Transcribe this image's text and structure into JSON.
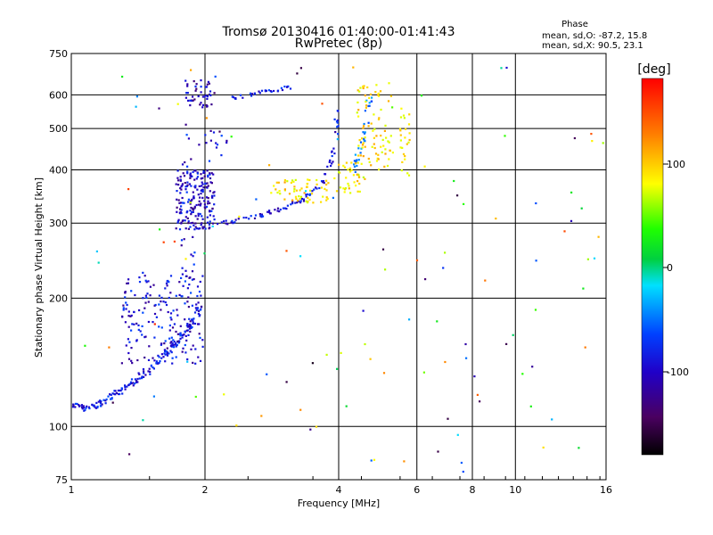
{
  "title": "Tromsø 20130416 01:40:00-01:41:43",
  "subtitle": "RwPretec (8p)",
  "phase_info": {
    "heading": "Phase",
    "line_o": "mean, sd,O: -87.2, 15.8",
    "line_x": "mean, sd,X:  90.5, 23.1"
  },
  "colorbar": {
    "label": "[deg]",
    "tick_labels": [
      "100",
      "0",
      "-100"
    ],
    "min": -180,
    "max": 180
  },
  "chart_data": {
    "type": "scatter",
    "xlabel": "Frequency [MHz]",
    "ylabel": "Stationary phase Virtual Height [km]",
    "xscale": "log",
    "yscale": "log",
    "xlim": [
      1,
      16
    ],
    "ylim": [
      75,
      750
    ],
    "x_ticks": [
      1,
      2,
      4,
      6,
      8,
      10,
      16
    ],
    "x_tick_labels": [
      "1",
      "2",
      "4",
      "6",
      "8",
      "10",
      "16"
    ],
    "y_ticks": [
      75,
      100,
      200,
      300,
      400,
      500,
      600,
      750
    ],
    "y_tick_labels": [
      "75",
      "100",
      "200",
      "300",
      "400",
      "500",
      "600",
      "750"
    ],
    "grid": true,
    "color_encoding": "phase [deg]",
    "clusters": [
      {
        "kind": "trace",
        "phase": -95,
        "jit": 0.035,
        "n": 20,
        "pts": [
          [
            1.0,
            112
          ],
          [
            1.1,
            110
          ],
          [
            1.2,
            116
          ],
          [
            1.3,
            122
          ],
          [
            1.42,
            130
          ],
          [
            1.55,
            140
          ],
          [
            1.65,
            150
          ],
          [
            1.75,
            160
          ],
          [
            1.85,
            172
          ],
          [
            1.95,
            190
          ]
        ]
      },
      {
        "kind": "blob",
        "phase": -100,
        "x": [
          1.3,
          2.0
        ],
        "y": [
          140,
          230
        ],
        "n": 180
      },
      {
        "kind": "blob",
        "phase": -100,
        "x": [
          1.75,
          1.9
        ],
        "y": [
          200,
          280
        ],
        "n": 20
      },
      {
        "kind": "blob",
        "phase": -105,
        "x": [
          1.72,
          2.1
        ],
        "y": [
          290,
          400
        ],
        "n": 200
      },
      {
        "kind": "blob",
        "phase": -100,
        "x": [
          1.78,
          2.3
        ],
        "y": [
          400,
          500
        ],
        "n": 20
      },
      {
        "kind": "blob",
        "phase": -110,
        "x": [
          1.8,
          2.1
        ],
        "y": [
          560,
          650
        ],
        "n": 45
      },
      {
        "kind": "trace",
        "phase": -100,
        "jit": 0.02,
        "n": 8,
        "pts": [
          [
            2.15,
            300
          ],
          [
            2.3,
            302
          ],
          [
            2.5,
            308
          ],
          [
            2.7,
            314
          ],
          [
            2.9,
            322
          ],
          [
            3.1,
            330
          ],
          [
            3.3,
            340
          ],
          [
            3.5,
            355
          ],
          [
            3.7,
            375
          ],
          [
            3.85,
            420
          ],
          [
            3.95,
            490
          ],
          [
            3.96,
            560
          ]
        ]
      },
      {
        "kind": "trace",
        "phase": -95,
        "jit": 0.02,
        "n": 8,
        "pts": [
          [
            2.3,
            590
          ],
          [
            2.5,
            600
          ],
          [
            2.7,
            610
          ],
          [
            2.9,
            615
          ],
          [
            3.1,
            625
          ]
        ]
      },
      {
        "kind": "trace",
        "phase": -60,
        "jit": 0.03,
        "n": 10,
        "pts": [
          [
            4.3,
            390
          ],
          [
            4.45,
            440
          ],
          [
            4.6,
            510
          ],
          [
            4.7,
            590
          ]
        ]
      },
      {
        "kind": "blob",
        "phase": 110,
        "x": [
          2.8,
          3.8
        ],
        "y": [
          335,
          380
        ],
        "n": 60
      },
      {
        "kind": "blob",
        "phase": 105,
        "x": [
          3.9,
          4.6
        ],
        "y": [
          350,
          420
        ],
        "n": 40
      },
      {
        "kind": "blob",
        "phase": 110,
        "x": [
          4.4,
          5.3
        ],
        "y": [
          400,
          640
        ],
        "n": 80
      },
      {
        "kind": "blob",
        "phase": 100,
        "x": [
          5.5,
          5.8
        ],
        "y": [
          380,
          570
        ],
        "n": 25
      },
      {
        "kind": "blob",
        "phase": 0,
        "x": [
          1.0,
          16.0
        ],
        "y": [
          78,
          700
        ],
        "n": 120,
        "mixed": true
      }
    ]
  }
}
